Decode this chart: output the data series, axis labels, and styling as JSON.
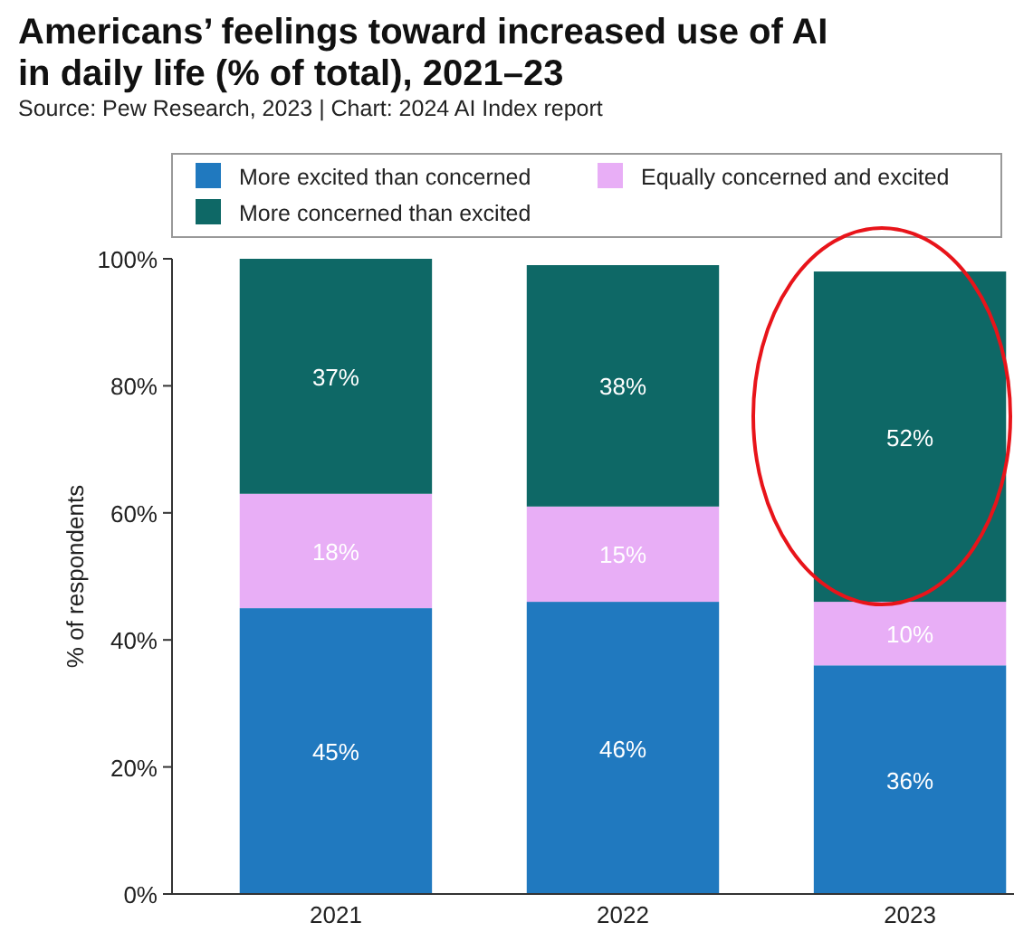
{
  "chart_data": {
    "type": "bar",
    "stacked": true,
    "title": "Americans’ feelings toward increased use of AI in daily life (% of total), 2021–23",
    "subtitle": "Source: Pew Research, 2023 | Chart: 2024 AI Index report",
    "ylabel": "% of respondents",
    "categories": [
      "2021",
      "2022",
      "2023"
    ],
    "series": [
      {
        "name": "More excited than concerned",
        "color": "#2079bf",
        "values": [
          45,
          46,
          36
        ],
        "value_labels": [
          "45%",
          "46%",
          "36%"
        ]
      },
      {
        "name": "Equally concerned and excited",
        "color": "#e8aef6",
        "values": [
          18,
          15,
          10
        ],
        "value_labels": [
          "18%",
          "15%",
          "10%"
        ]
      },
      {
        "name": "More concerned than excited",
        "color": "#0e6866",
        "values": [
          37,
          38,
          52
        ],
        "value_labels": [
          "37%",
          "38%",
          "52%"
        ]
      }
    ],
    "ylim": [
      0,
      100
    ],
    "yticks": [
      {
        "value": 0,
        "label": "0%"
      },
      {
        "value": 20,
        "label": "20%"
      },
      {
        "value": 40,
        "label": "40%"
      },
      {
        "value": 60,
        "label": "60%"
      },
      {
        "value": 80,
        "label": "80%"
      },
      {
        "value": 100,
        "label": "100%"
      }
    ],
    "legend": "top"
  }
}
